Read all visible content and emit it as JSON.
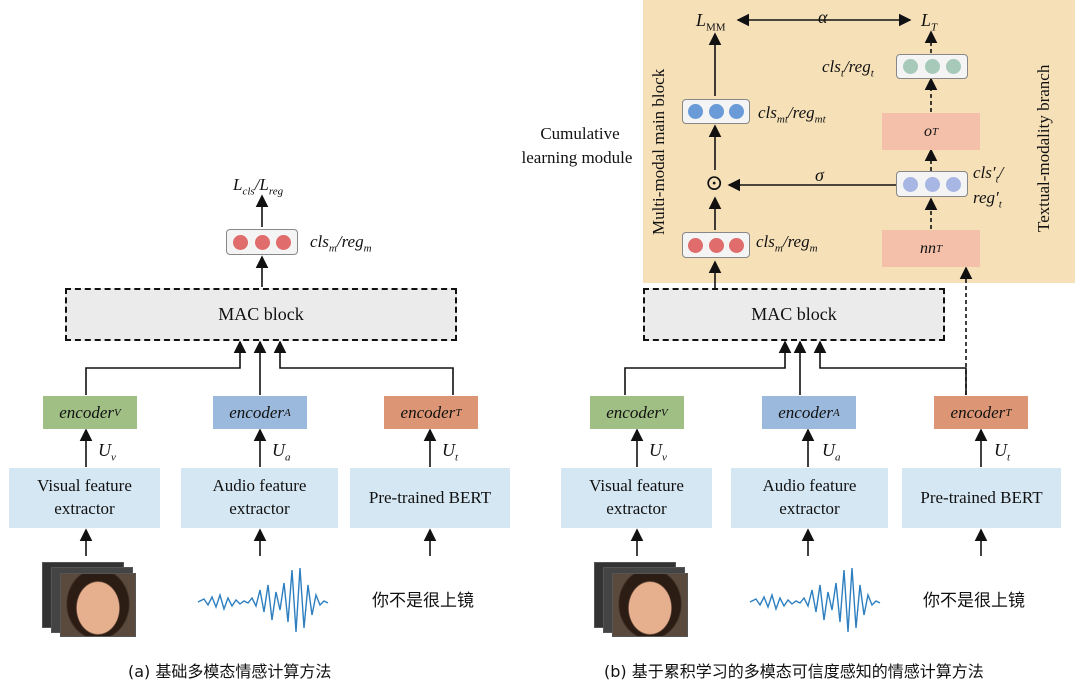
{
  "panel_a": {
    "loss_label": "L_cls/L_reg",
    "cls_label": "cls_m/reg_m",
    "mac_label": "MAC block",
    "encoders": [
      "encoder_V",
      "encoder_A",
      "encoder_T"
    ],
    "u_labels": [
      "U_v",
      "U_a",
      "U_t"
    ],
    "extractors": [
      "Visual feature extractor",
      "Audio feature extractor",
      "Pre-trained BERT"
    ],
    "text_input": "你不是很上镜",
    "caption": "(a) 基础多模态情感计算方法"
  },
  "panel_b": {
    "cumulative_label_1": "Cumulative",
    "cumulative_label_2": "learning module",
    "main_block_label": "Multi-modal main block",
    "textual_branch_label": "Textual-modality branch",
    "l_mm": "L_MM",
    "l_t": "L_T",
    "alpha": "α",
    "sigma": "σ",
    "odot": "⊙",
    "cls_mt": "cls_mt/reg_mt",
    "cls_t": "cls_t/reg_t",
    "o_t": "o_T",
    "cls_t_prime_1": "cls′_t/",
    "cls_t_prime_2": "reg′_t",
    "nn_t": "nn_T",
    "cls_m": "cls_m/reg_m",
    "mac_label": "MAC block",
    "encoders": [
      "encoder_V",
      "encoder_A",
      "encoder_T"
    ],
    "u_labels": [
      "U_v",
      "U_a",
      "U_t"
    ],
    "extractors": [
      "Visual feature extractor",
      "Audio feature extractor",
      "Pre-trained BERT"
    ],
    "text_input": "你不是很上镜",
    "caption": "(b) 基于累积学习的多模态可信度感知的情感计算方法"
  },
  "colors": {
    "feature_box": "#d5e7f3",
    "mac_box": "#ebebeb",
    "encoder_v": "#9fbf84",
    "encoder_a": "#9bb9dc",
    "encoder_t": "#dd9675",
    "cumulative_bg": "#f6e0b8",
    "textual_box": "#f4c0aa",
    "audio_wave": "#2d7fc0"
  }
}
